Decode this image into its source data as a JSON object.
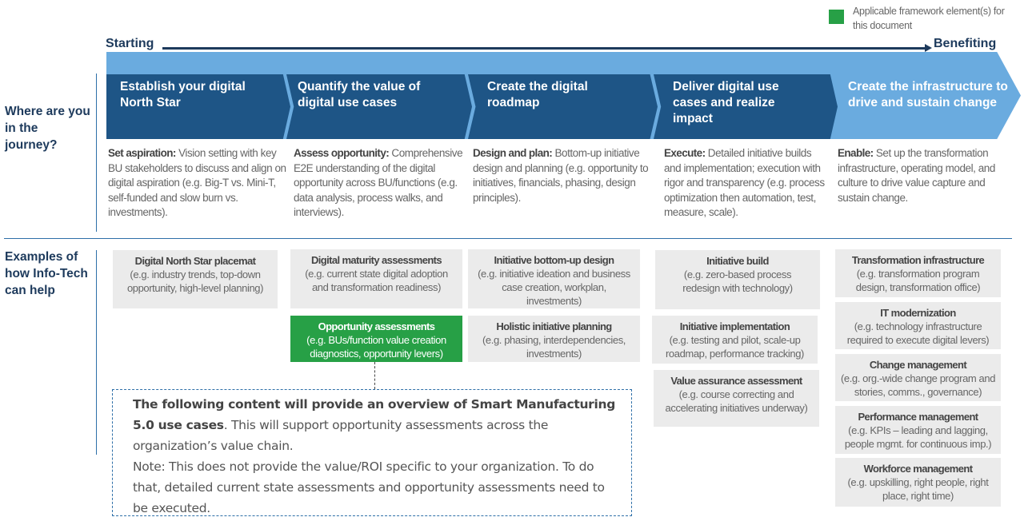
{
  "legend": {
    "label": "Applicable framework element(s) for this document",
    "color": "#27a046"
  },
  "axis": {
    "start": "Starting",
    "end": "Benefiting"
  },
  "side_labels": {
    "journey": "Where are you in the journey?",
    "help": "Examples of how Info-Tech can help"
  },
  "phases": [
    {
      "title": "Establish your digital North Star",
      "desc_head": "Set aspiration:",
      "desc": " Vision setting with key BU stakeholders to discuss and align on digital aspiration (e.g. Big-T vs. Mini-T, self-funded and slow burn vs. investments)."
    },
    {
      "title": "Quantify the value of digital use cases",
      "desc_head": "Assess opportunity:",
      "desc": " Comprehensive E2E understanding of the digital opportunity across BU/functions (e.g. data analysis, process walks, and interviews)."
    },
    {
      "title": "Create the digital roadmap",
      "desc_head": "Design and plan:",
      "desc": " Bottom-up initiative design and planning (e.g. opportunity to initiatives, financials, phasing, design principles)."
    },
    {
      "title": "Deliver digital use cases and realize impact",
      "desc_head": "Execute:",
      "desc": " Detailed initiative builds and implementation; execution with rigor and transparency (e.g. process optimization then automation, test, measure, scale)."
    },
    {
      "title": "Create the infrastructure to drive and sustain change",
      "desc_head": "Enable:",
      "desc": " Set up the transformation infrastructure, operating model, and culture to drive value capture and sustain change."
    }
  ],
  "boxes": [
    {
      "title": "Digital North Star placemat",
      "desc": "(e.g. industry trends, top-down opportunity, high-level planning)"
    },
    {
      "title": "Digital maturity assessments",
      "desc": "(e.g. current state digital adoption and transformation readiness)"
    },
    {
      "title": "Opportunity assessments",
      "desc": "(e.g. BUs/function value creation diagnostics, opportunity levers)",
      "highlighted": true
    },
    {
      "title": "Initiative bottom-up design",
      "desc": "(e.g. initiative ideation and business case creation, workplan, investments)"
    },
    {
      "title": "Holistic initiative planning",
      "desc": "(e.g. phasing, interdependencies, investments)"
    },
    {
      "title": "Initiative build",
      "desc": "(e.g. zero-based process redesign with technology)"
    },
    {
      "title": "Initiative implementation",
      "desc": "(e.g. testing and pilot, scale-up roadmap, performance tracking)"
    },
    {
      "title": "Value assurance assessment",
      "desc": "(e.g. course correcting and accelerating initiatives underway)"
    },
    {
      "title": "Transformation infrastructure",
      "desc": "(e.g. transformation program design, transformation office)"
    },
    {
      "title": "IT modernization",
      "desc": "(e.g. technology infrastructure required to execute digital levers)"
    },
    {
      "title": "Change management",
      "desc": "(e.g. org.-wide change program and stories, comms., governance)"
    },
    {
      "title": "Performance management",
      "desc": "(e.g. KPIs – leading and lagging, people mgmt. for continuous imp.)"
    },
    {
      "title": "Workforce management",
      "desc": "(e.g. upskilling, right people, right place, right time)"
    }
  ],
  "note": {
    "bold": "The following content will provide an overview of Smart Manufacturing 5.0 use cases",
    "text1": ". This will support opportunity assessments across the organization’s value chain.",
    "text2": "Note: This does not provide the value/ROI specific to your organization. To do that, detailed current state assessments and opportunity assessments need to be executed."
  }
}
